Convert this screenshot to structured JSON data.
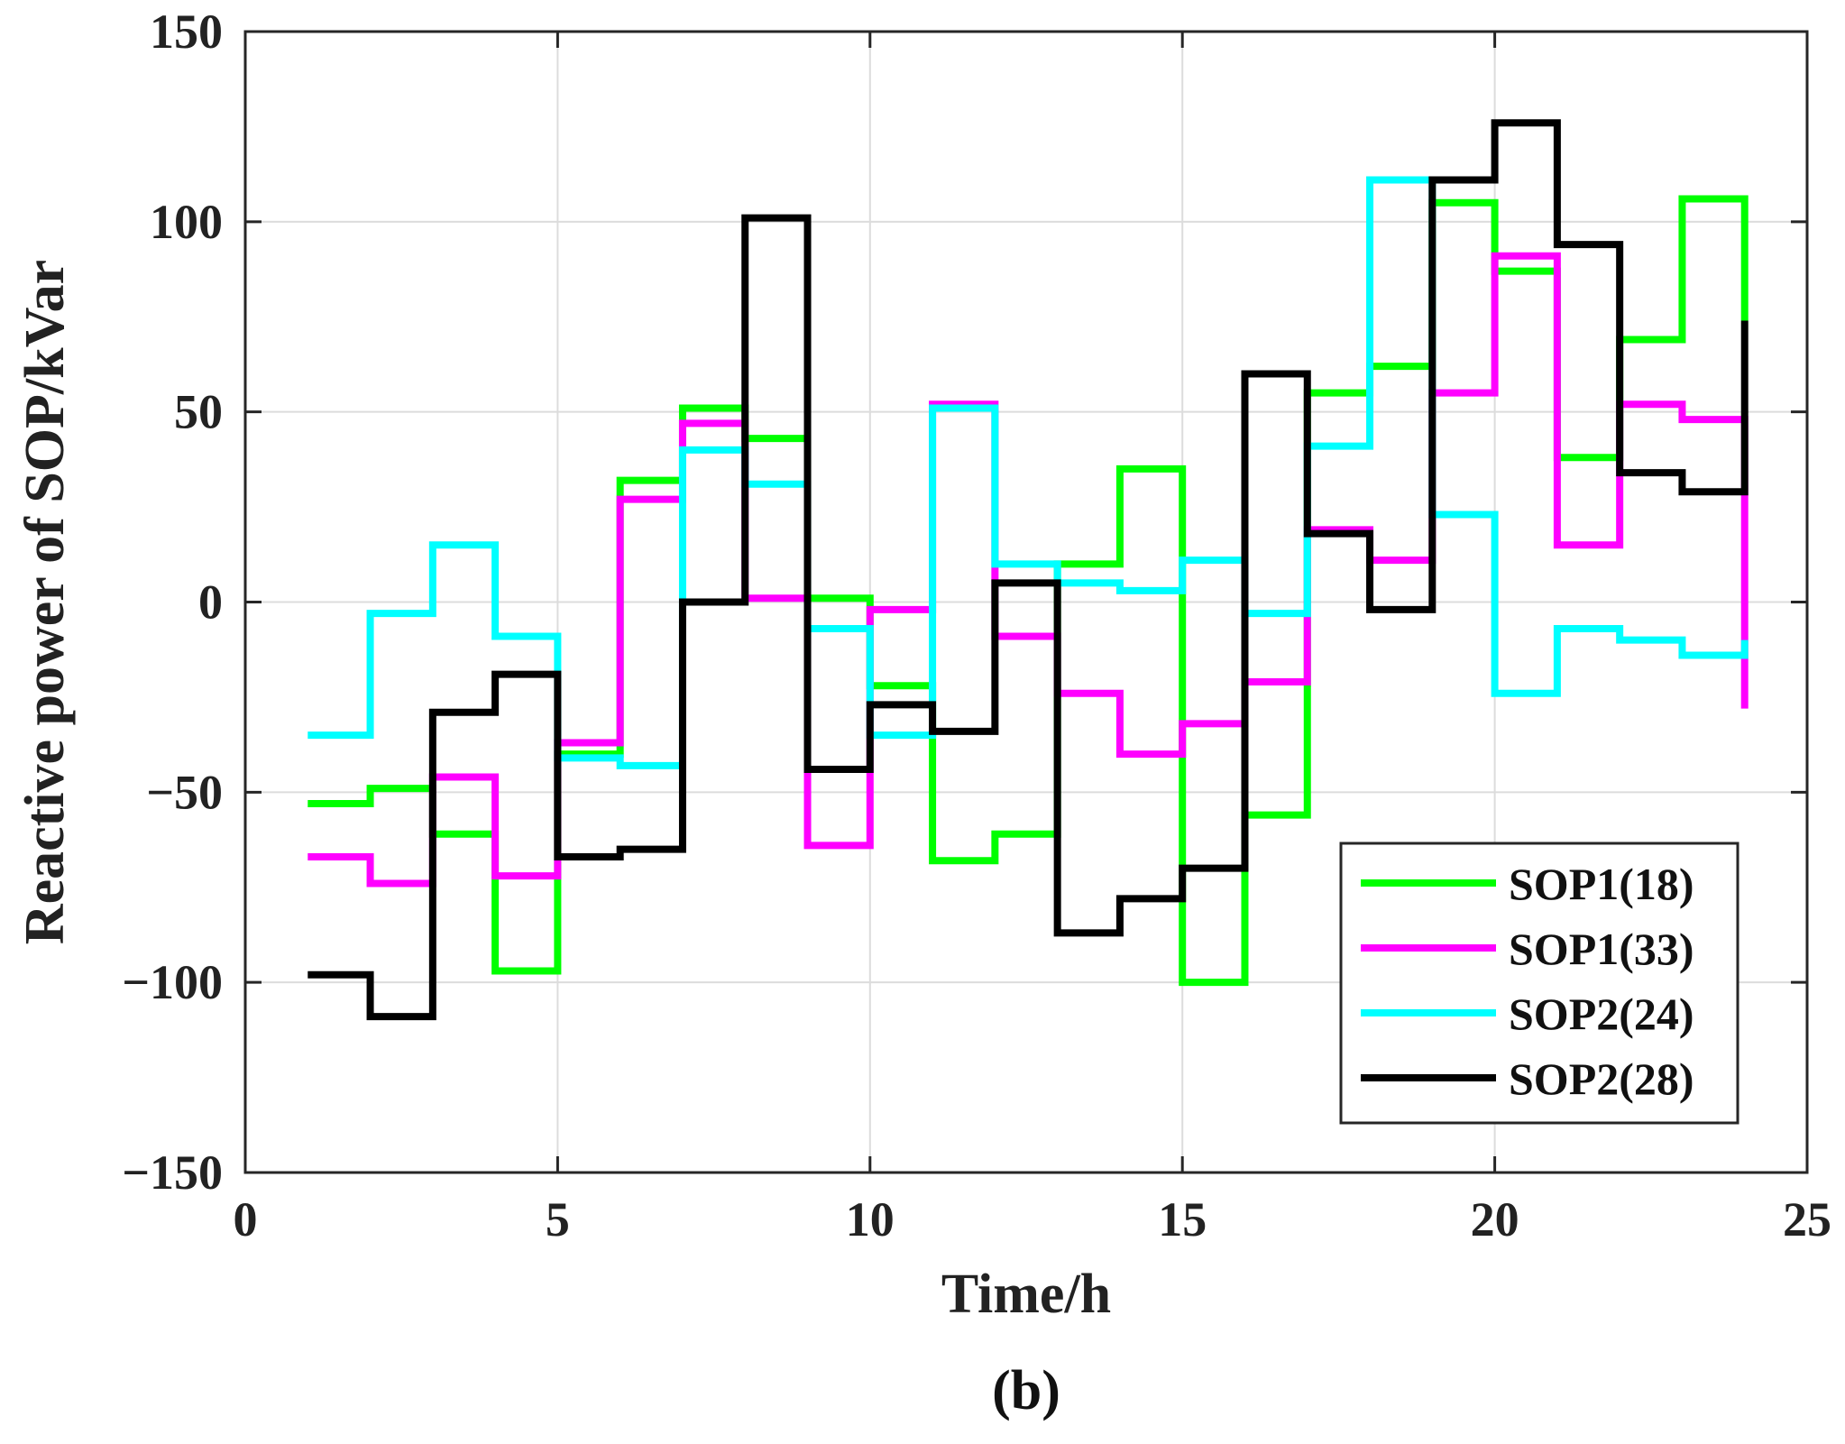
{
  "chart_data": {
    "type": "line",
    "step": "post",
    "title": "",
    "panel_label": "(b)",
    "xlabel": "Time/h",
    "ylabel": "Reactive power of SOP/kVar",
    "xlim": [
      0,
      25
    ],
    "ylim": [
      -150,
      150
    ],
    "xticks": [
      0,
      5,
      10,
      15,
      20,
      25
    ],
    "yticks": [
      -150,
      -100,
      -50,
      0,
      50,
      100,
      150
    ],
    "xtick_labels": [
      "0",
      "5",
      "10",
      "15",
      "20",
      "25"
    ],
    "ytick_labels": [
      "−150",
      "−100",
      "−50",
      "0",
      "50",
      "100",
      "150"
    ],
    "grid": true,
    "legend_position": "bottom-right",
    "x": [
      1,
      2,
      3,
      4,
      5,
      6,
      7,
      8,
      9,
      10,
      11,
      12,
      13,
      14,
      15,
      16,
      17,
      18,
      19,
      20,
      21,
      22,
      23,
      24
    ],
    "series": [
      {
        "name": "SOP1(18)",
        "color": "#00ff00",
        "values": [
          -53,
          -49,
          -61,
          -97,
          -40,
          32,
          51,
          43,
          1,
          -22,
          -68,
          -61,
          10,
          35,
          -100,
          -56,
          55,
          62,
          105,
          87,
          38,
          69,
          106,
          74
        ]
      },
      {
        "name": "SOP1(33)",
        "color": "#ff00ff",
        "values": [
          -67,
          -74,
          -46,
          -72,
          -37,
          27,
          47,
          1,
          -64,
          -2,
          52,
          -9,
          -24,
          -40,
          -32,
          -21,
          19,
          11,
          55,
          91,
          15,
          52,
          48,
          -28
        ]
      },
      {
        "name": "SOP2(24)",
        "color": "#00ffff",
        "values": [
          -35,
          -3,
          15,
          -9,
          -41,
          -43,
          40,
          31,
          -7,
          -35,
          51,
          10,
          5,
          3,
          11,
          -3,
          41,
          111,
          23,
          -24,
          -7,
          -10,
          -14,
          -10
        ]
      },
      {
        "name": "SOP2(28)",
        "color": "#000000",
        "values": [
          -98,
          -109,
          -29,
          -19,
          -67,
          -65,
          0,
          101,
          -44,
          -27,
          -34,
          5,
          -87,
          -78,
          -70,
          60,
          18,
          -2,
          111,
          126,
          94,
          34,
          29,
          74
        ]
      }
    ]
  }
}
